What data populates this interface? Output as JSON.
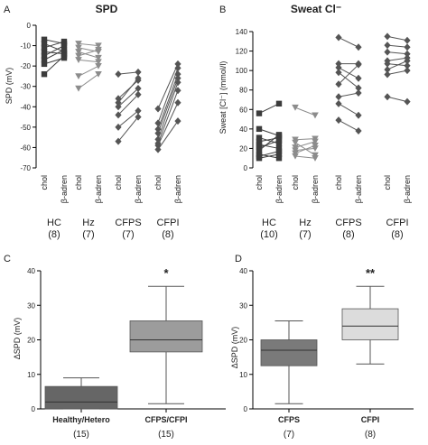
{
  "panels": {
    "A": {
      "letter": "A",
      "title": "SPD",
      "ylabel": "SPD (mV)",
      "ylim": [
        -70,
        0
      ],
      "yticks": [
        0,
        -10,
        -20,
        -30,
        -40,
        -50,
        -60,
        -70
      ]
    },
    "B": {
      "letter": "B",
      "title": "Sweat Cl⁻",
      "ylabel": "Sweat [Cl⁻] (mmol/l)",
      "ylim": [
        0,
        140
      ],
      "yticks": [
        0,
        20,
        40,
        60,
        80,
        100,
        120,
        140
      ]
    },
    "C": {
      "letter": "C",
      "ylabel": "ΔSPD (mV)",
      "ylim": [
        0,
        40
      ],
      "yticks": [
        0,
        10,
        20,
        30,
        40
      ]
    },
    "D": {
      "letter": "D",
      "ylabel": "ΔSPD (mV)",
      "ylim": [
        0,
        40
      ],
      "yticks": [
        0,
        10,
        20,
        30,
        40
      ]
    }
  },
  "conditions": [
    "chol",
    "β-adren"
  ],
  "chart_data": [
    {
      "panel": "A",
      "type": "line",
      "title": "SPD",
      "ylabel": "SPD (mV)",
      "ylim": [
        -70,
        0
      ],
      "groups": [
        {
          "name": "HC",
          "n": "(8)",
          "color": "#3c3c3c",
          "marker": "square",
          "pairs": [
            [
              -7,
              -9
            ],
            [
              -9,
              -13
            ],
            [
              -11,
              -8
            ],
            [
              -13,
              -14
            ],
            [
              -15,
              -10
            ],
            [
              -17,
              -12
            ],
            [
              -19,
              -16
            ],
            [
              -24,
              -15
            ]
          ]
        },
        {
          "name": "Hz",
          "n": "(7)",
          "color": "#8c8c8c",
          "marker": "triangle",
          "pairs": [
            [
              -9,
              -10
            ],
            [
              -11,
              -13
            ],
            [
              -13,
              -16
            ],
            [
              -15,
              -12
            ],
            [
              -17,
              -18
            ],
            [
              -25,
              -20
            ],
            [
              -31,
              -24
            ]
          ]
        },
        {
          "name": "CFPS",
          "n": "(7)",
          "color": "#555555",
          "marker": "diamond",
          "pairs": [
            [
              -24,
              -23
            ],
            [
              -36,
              -27
            ],
            [
              -38,
              -26
            ],
            [
              -40,
              -31
            ],
            [
              -44,
              -34
            ],
            [
              -50,
              -42
            ],
            [
              -57,
              -45
            ]
          ]
        },
        {
          "name": "CFPI",
          "n": "(8)",
          "color": "#555555",
          "marker": "diamond",
          "pairs": [
            [
              -41,
              -19
            ],
            [
              -48,
              -21
            ],
            [
              -51,
              -24
            ],
            [
              -53,
              -26
            ],
            [
              -56,
              -28
            ],
            [
              -58,
              -32
            ],
            [
              -59,
              -38
            ],
            [
              -61,
              -47
            ]
          ]
        }
      ]
    },
    {
      "panel": "B",
      "type": "line",
      "title": "Sweat Cl⁻",
      "ylabel": "Sweat [Cl⁻] (mmol/l)",
      "ylim": [
        0,
        140
      ],
      "groups": [
        {
          "name": "HC",
          "n": "(10)",
          "color": "#3c3c3c",
          "marker": "square",
          "pairs": [
            [
              56,
              66
            ],
            [
              40,
              33
            ],
            [
              31,
              25
            ],
            [
              27,
              31
            ],
            [
              24,
              20
            ],
            [
              21,
              28
            ],
            [
              18,
              34
            ],
            [
              14,
              10
            ],
            [
              12,
              17
            ],
            [
              10,
              14
            ]
          ]
        },
        {
          "name": "Hz",
          "n": "(7)",
          "color": "#8c8c8c",
          "marker": "triangle",
          "pairs": [
            [
              62,
              54
            ],
            [
              29,
              30
            ],
            [
              26,
              13
            ],
            [
              21,
              27
            ],
            [
              18,
              20
            ],
            [
              15,
              23
            ],
            [
              12,
              10
            ]
          ]
        },
        {
          "name": "CFPS",
          "n": "(8)",
          "color": "#555555",
          "marker": "diamond",
          "pairs": [
            [
              134,
              124
            ],
            [
              107,
              107
            ],
            [
              103,
              92
            ],
            [
              98,
              82
            ],
            [
              86,
              106
            ],
            [
              73,
              77
            ],
            [
              66,
              54
            ],
            [
              49,
              38
            ]
          ]
        },
        {
          "name": "CFPI",
          "n": "(8)",
          "color": "#555555",
          "marker": "diamond",
          "pairs": [
            [
              135,
              131
            ],
            [
              126,
              124
            ],
            [
              119,
              117
            ],
            [
              110,
              113
            ],
            [
              107,
              105
            ],
            [
              101,
              110
            ],
            [
              96,
              100
            ],
            [
              73,
              68
            ]
          ]
        }
      ]
    },
    {
      "panel": "C",
      "type": "box",
      "ylabel": "ΔSPD (mV)",
      "ylim": [
        0,
        40
      ],
      "boxes": [
        {
          "name": "Healthy/Hetero",
          "n": "(15)",
          "min": 0,
          "q1": 0,
          "median": 2,
          "q3": 6.5,
          "max": 9,
          "fill": "#666666",
          "sig": ""
        },
        {
          "name": "CFPS/CFPI",
          "n": "(15)",
          "min": 1.5,
          "q1": 16.5,
          "median": 20,
          "q3": 25.5,
          "max": 35.5,
          "fill": "#9c9c9c",
          "sig": "*"
        }
      ]
    },
    {
      "panel": "D",
      "type": "box",
      "ylabel": "ΔSPD (mV)",
      "ylim": [
        0,
        40
      ],
      "boxes": [
        {
          "name": "CFPS",
          "n": "(7)",
          "min": 1.5,
          "q1": 12.5,
          "median": 17,
          "q3": 20,
          "max": 25.5,
          "fill": "#7a7a7a",
          "sig": ""
        },
        {
          "name": "CFPI",
          "n": "(8)",
          "min": 13,
          "q1": 20,
          "median": 24,
          "q3": 29,
          "max": 35.5,
          "fill": "#dcdcdc",
          "sig": "**"
        }
      ]
    }
  ]
}
